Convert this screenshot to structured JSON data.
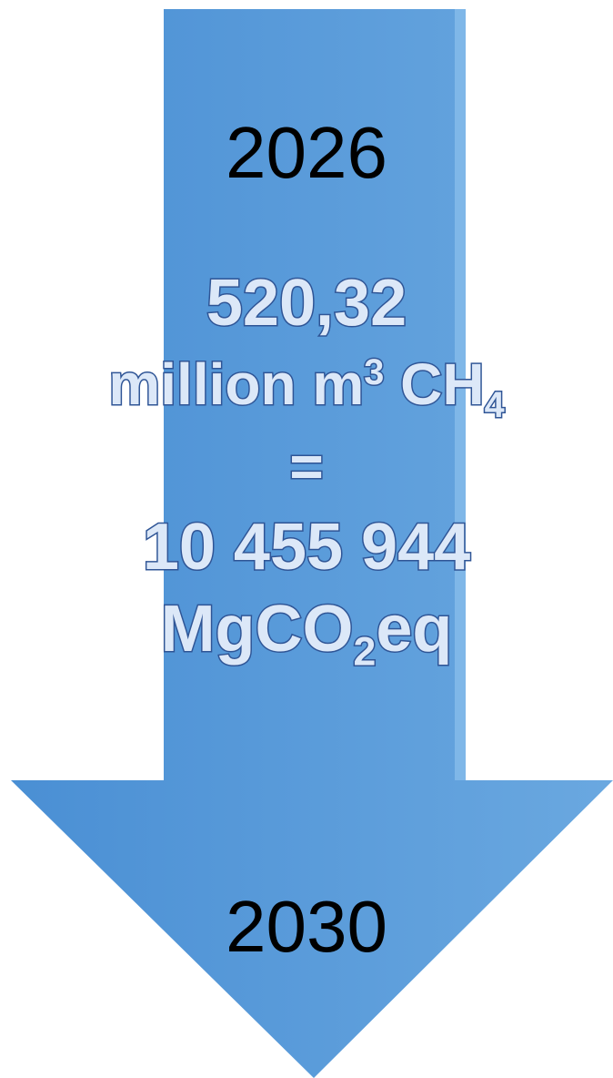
{
  "arrow": {
    "direction": "down",
    "color_left": "#4a8fd4",
    "color_right": "#6aa8e0",
    "text_fill": "#dce8f8",
    "text_outline": "#2f5596"
  },
  "start_year": "2026",
  "end_year": "2030",
  "methane": {
    "value": "520,32",
    "unit_prefix": "million m",
    "unit_sup": "3",
    "formula_main": "CH",
    "formula_sub": "4"
  },
  "equals": "=",
  "co2": {
    "value": "10 455 944",
    "unit_prefix": "MgCO",
    "unit_sub": "2",
    "unit_suffix": "eq"
  }
}
